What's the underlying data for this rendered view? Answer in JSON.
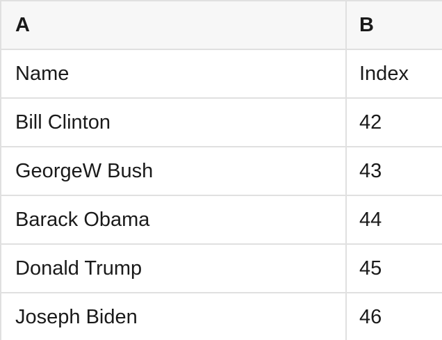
{
  "spreadsheet": {
    "column_headers": [
      {
        "label": "A"
      },
      {
        "label": "B"
      }
    ],
    "rows": [
      {
        "cells": [
          "Name",
          "Index"
        ]
      },
      {
        "cells": [
          "Bill Clinton",
          "42"
        ]
      },
      {
        "cells": [
          "GeorgeW Bush",
          "43"
        ]
      },
      {
        "cells": [
          "Barack Obama",
          "44"
        ]
      },
      {
        "cells": [
          "Donald Trump",
          "45"
        ]
      },
      {
        "cells": [
          "Joseph Biden",
          "46"
        ]
      }
    ]
  },
  "colors": {
    "header_bg": "#f7f7f7",
    "border": "#e0e0e0",
    "text": "#1a1a1a"
  }
}
